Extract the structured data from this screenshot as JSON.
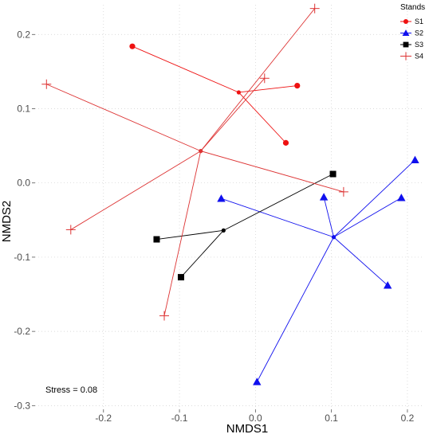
{
  "chart_data": {
    "type": "scatter",
    "xlabel": "NMDS1",
    "ylabel": "NMDS2",
    "xlim": [
      -0.29,
      0.22
    ],
    "ylim": [
      -0.305,
      0.24
    ],
    "x_ticks": [
      -0.2,
      -0.1,
      0.0,
      0.1,
      0.2
    ],
    "x_tick_labels": [
      "-0.2",
      "-0.1",
      "0.0",
      "0.1",
      "0.2"
    ],
    "y_ticks": [
      -0.3,
      -0.2,
      -0.1,
      0.0,
      0.1,
      0.2
    ],
    "y_tick_labels": [
      "-0.3",
      "-0.2",
      "-0.1",
      "0.0",
      "0.1",
      "0.2"
    ],
    "grid": "dotted",
    "annotation": "Stress = 0.08",
    "legend": {
      "title": "Stands",
      "position": "top-right"
    },
    "series": [
      {
        "name": "S1",
        "color": "#ee1111",
        "marker": "circle",
        "centroid": [
          -0.022,
          0.122
        ],
        "points": [
          [
            -0.162,
            0.184
          ],
          [
            0.055,
            0.131
          ],
          [
            0.04,
            0.054
          ]
        ]
      },
      {
        "name": "S2",
        "color": "#1010ee",
        "marker": "triangle",
        "centroid": [
          0.103,
          -0.073
        ],
        "points": [
          [
            -0.045,
            -0.021
          ],
          [
            0.09,
            -0.019
          ],
          [
            0.21,
            0.031
          ],
          [
            0.192,
            -0.02
          ],
          [
            0.174,
            -0.138
          ],
          [
            0.002,
            -0.268
          ]
        ]
      },
      {
        "name": "S3",
        "color": "#000000",
        "marker": "square",
        "centroid": [
          -0.042,
          -0.064
        ],
        "points": [
          [
            -0.13,
            -0.076
          ],
          [
            -0.098,
            -0.127
          ],
          [
            0.102,
            0.012
          ]
        ]
      },
      {
        "name": "S4",
        "color": "#dd3333",
        "marker": "plus",
        "centroid": [
          -0.072,
          0.043
        ],
        "points": [
          [
            0.078,
            0.235
          ],
          [
            0.012,
            0.141
          ],
          [
            -0.275,
            0.133
          ],
          [
            0.116,
            -0.012
          ],
          [
            -0.243,
            -0.063
          ],
          [
            -0.12,
            -0.179
          ]
        ]
      }
    ]
  }
}
